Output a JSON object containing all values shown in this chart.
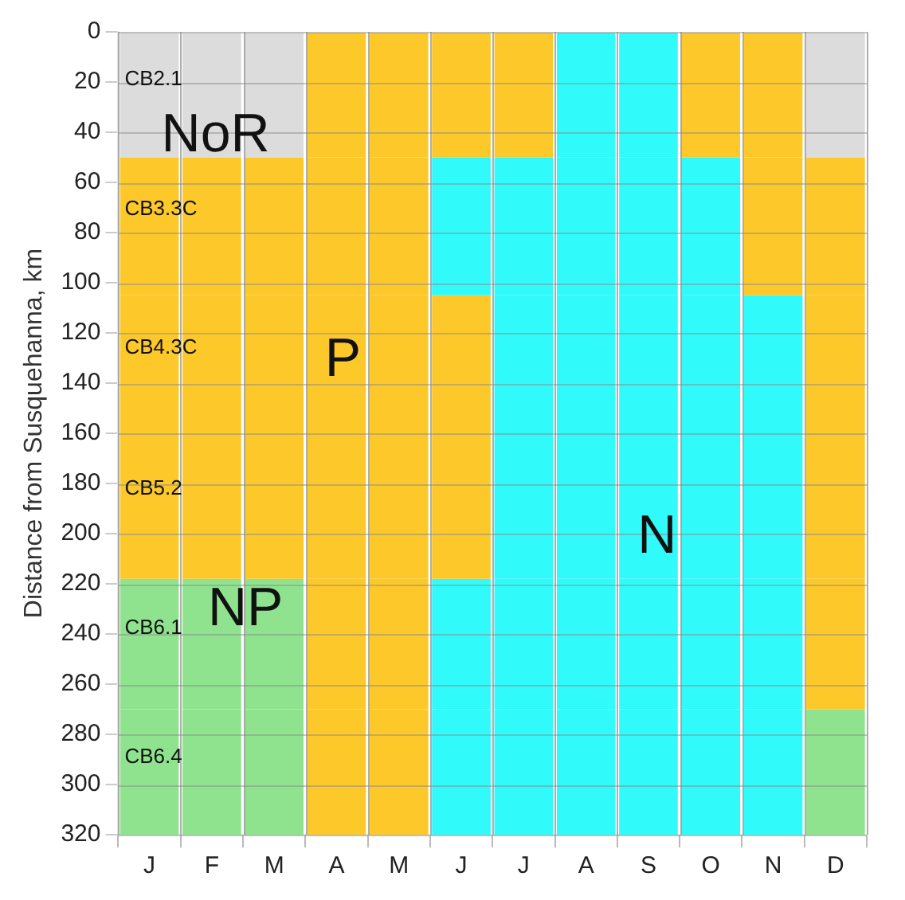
{
  "chart_data": {
    "type": "bar",
    "stacked": true,
    "ylabel": "Distance from Susquehanna, km",
    "categories": [
      "J",
      "F",
      "M",
      "A",
      "M",
      "J",
      "J",
      "A",
      "S",
      "O",
      "N",
      "D"
    ],
    "series": [
      {
        "values": [
          50,
          50,
          50,
          50,
          50,
          50,
          50,
          50,
          50,
          50,
          50,
          50
        ],
        "colors": [
          "#dcdcdc",
          "#dcdcdc",
          "#dcdcdc",
          "#fdc82a",
          "#fdc82a",
          "#fdc82a",
          "#fdc82a",
          "#30fafa",
          "#30fafa",
          "#fdc82a",
          "#fdc82a",
          "#dcdcdc"
        ]
      },
      {
        "values": [
          55,
          55,
          55,
          55,
          55,
          55,
          55,
          55,
          55,
          55,
          55,
          55
        ],
        "colors": [
          "#fdc82a",
          "#fdc82a",
          "#fdc82a",
          "#fdc82a",
          "#fdc82a",
          "#30fafa",
          "#30fafa",
          "#30fafa",
          "#30fafa",
          "#30fafa",
          "#fdc82a",
          "#fdc82a"
        ]
      },
      {
        "values": [
          55,
          55,
          55,
          55,
          55,
          55,
          55,
          55,
          55,
          55,
          55,
          55
        ],
        "colors": [
          "#fdc82a",
          "#fdc82a",
          "#fdc82a",
          "#fdc82a",
          "#fdc82a",
          "#fdc82a",
          "#30fafa",
          "#30fafa",
          "#30fafa",
          "#30fafa",
          "#30fafa",
          "#fdc82a"
        ]
      },
      {
        "values": [
          58,
          58,
          58,
          58,
          58,
          58,
          58,
          58,
          58,
          58,
          58,
          58
        ],
        "colors": [
          "#fdc82a",
          "#fdc82a",
          "#fdc82a",
          "#fdc82a",
          "#fdc82a",
          "#fdc82a",
          "#30fafa",
          "#30fafa",
          "#30fafa",
          "#30fafa",
          "#30fafa",
          "#fdc82a"
        ]
      },
      {
        "values": [
          52,
          52,
          52,
          52,
          52,
          52,
          52,
          52,
          52,
          52,
          52,
          52
        ],
        "colors": [
          "#8fe38f",
          "#8fe38f",
          "#8fe38f",
          "#fdc82a",
          "#fdc82a",
          "#30fafa",
          "#30fafa",
          "#30fafa",
          "#30fafa",
          "#30fafa",
          "#30fafa",
          "#fdc82a"
        ]
      },
      {
        "values": [
          50,
          50,
          50,
          50,
          50,
          50,
          50,
          50,
          50,
          50,
          50,
          50
        ],
        "colors": [
          "#8fe38f",
          "#8fe38f",
          "#8fe38f",
          "#fdc82a",
          "#fdc82a",
          "#30fafa",
          "#30fafa",
          "#30fafa",
          "#30fafa",
          "#30fafa",
          "#30fafa",
          "#8fe38f"
        ]
      }
    ],
    "ylim": [
      320,
      0
    ],
    "yticks": [
      0,
      20,
      40,
      60,
      80,
      100,
      120,
      140,
      160,
      180,
      200,
      220,
      240,
      260,
      280,
      300,
      320
    ],
    "grid": true,
    "annotations": [
      "CB2.1",
      "CB3.3C",
      "CB4.3C",
      "CB5.2",
      "CB6.1",
      "CB6.4",
      "NoR",
      "P",
      "N",
      "NP"
    ]
  }
}
